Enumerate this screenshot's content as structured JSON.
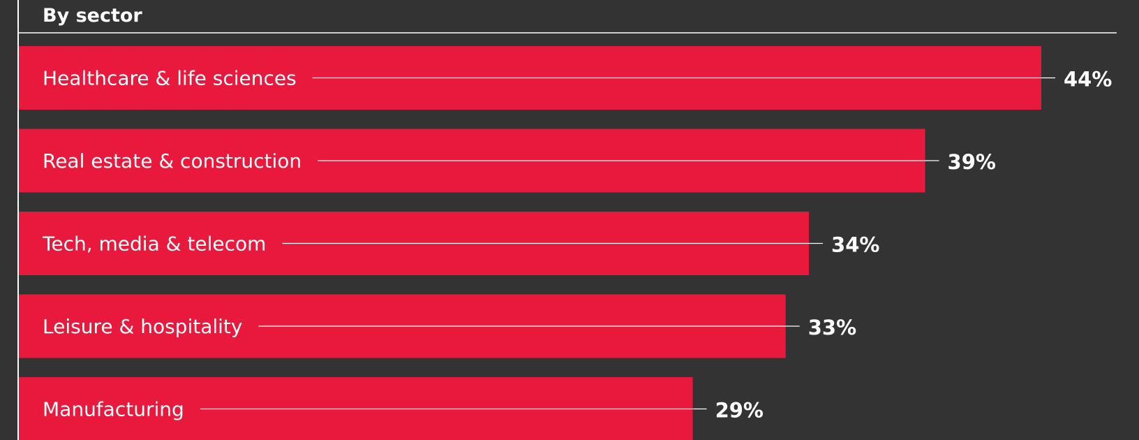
{
  "chart_data": {
    "type": "bar",
    "orientation": "horizontal",
    "title": "By sector",
    "categories": [
      "Healthcare & life sciences",
      "Real estate & construction",
      "Tech, media & telecom",
      "Leisure & hospitality",
      "Manufacturing"
    ],
    "values": [
      44,
      39,
      34,
      33,
      29
    ],
    "value_labels": [
      "44%",
      "39%",
      "34%",
      "33%",
      "29%"
    ],
    "unit": "%",
    "grid": false,
    "legend": "none"
  },
  "colors": {
    "background": "#333333",
    "bar": "#E8193C",
    "text": "#FFFFFF",
    "rule": "#FFFFFF"
  }
}
